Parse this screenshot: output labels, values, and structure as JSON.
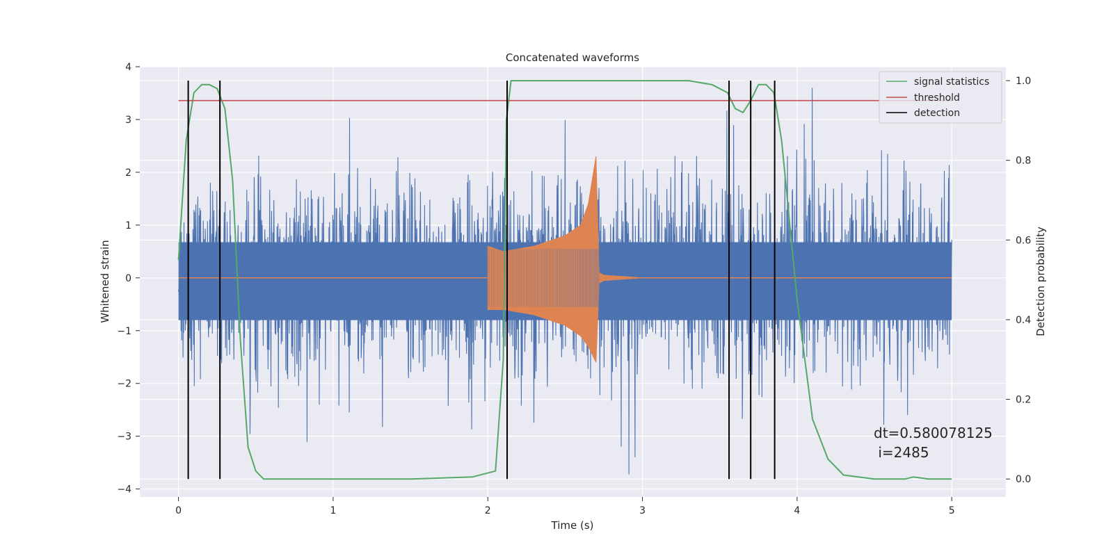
{
  "chart_data": {
    "type": "line",
    "title": "Concatenated waveforms",
    "xlabel": "Time (s)",
    "ylabel": "Whitened strain",
    "y2label": "Detection probability",
    "xlim": [
      -0.25,
      5.35
    ],
    "ylim": [
      -4.15,
      4.0
    ],
    "y2lim": [
      -0.045,
      1.035
    ],
    "xticks": [
      "0",
      "1",
      "2",
      "3",
      "4",
      "5"
    ],
    "xtick_values": [
      0,
      1,
      2,
      3,
      4,
      5
    ],
    "yticks": [
      "4",
      "3",
      "2",
      "1",
      "0",
      "−1",
      "−2",
      "−3",
      "−4"
    ],
    "ytick_values": [
      4,
      3,
      2,
      1,
      0,
      -1,
      -2,
      -3,
      -4
    ],
    "y2ticks": [
      "1.0",
      "0.8",
      "0.6",
      "0.4",
      "0.2",
      "0.0"
    ],
    "y2tick_values": [
      1.0,
      0.8,
      0.6,
      0.4,
      0.2,
      0.0
    ],
    "grid": true,
    "legend_position": "top-right",
    "annotation": [
      "dt=0.580078125",
      " i=2485"
    ],
    "colors": {
      "noise": "#4c72b0",
      "injection": "#dd8452",
      "signal_statistics": "#55a868",
      "threshold": "#c44e52",
      "detection": "#000000",
      "plot_bg": "#eaeaf2",
      "grid": "#ffffff"
    },
    "series": [
      {
        "name": "",
        "axis": "left",
        "kind": "whitened noise",
        "x_range": [
          0,
          5
        ],
        "typical_envelope": [
          -2.0,
          2.5
        ],
        "extremes": [
          -3.8,
          3.6
        ]
      },
      {
        "name": "",
        "axis": "left",
        "kind": "injected chirp",
        "x": [
          0,
          2.0,
          2.0,
          2.1,
          2.2,
          2.3,
          2.4,
          2.5,
          2.6,
          2.65,
          2.7,
          2.72,
          2.75,
          3.0,
          5.0
        ],
        "upper": [
          0,
          0,
          0.6,
          0.5,
          0.55,
          0.6,
          0.7,
          0.8,
          1.0,
          1.4,
          2.3,
          0.1,
          0.05,
          0,
          0
        ],
        "lower": [
          0,
          0,
          -0.6,
          -0.6,
          -0.65,
          -0.7,
          -0.8,
          -0.9,
          -1.1,
          -1.3,
          -1.6,
          -0.1,
          -0.05,
          0,
          0
        ]
      },
      {
        "name": "signal statistics",
        "axis": "right",
        "x": [
          0,
          0.05,
          0.1,
          0.15,
          0.2,
          0.25,
          0.3,
          0.35,
          0.4,
          0.45,
          0.5,
          0.55,
          0.6,
          1.0,
          1.5,
          1.9,
          2.05,
          2.1,
          2.12,
          2.15,
          2.2,
          3.3,
          3.45,
          3.55,
          3.6,
          3.65,
          3.7,
          3.75,
          3.8,
          3.85,
          3.9,
          4.0,
          4.1,
          4.2,
          4.3,
          4.5,
          4.7,
          4.75,
          4.85,
          5.0
        ],
        "y": [
          0.55,
          0.85,
          0.97,
          0.99,
          0.99,
          0.98,
          0.93,
          0.75,
          0.35,
          0.08,
          0.02,
          0.0,
          0.0,
          0.0,
          0.0,
          0.005,
          0.02,
          0.3,
          0.9,
          1.0,
          1.0,
          1.0,
          0.99,
          0.97,
          0.93,
          0.92,
          0.95,
          0.99,
          0.99,
          0.97,
          0.85,
          0.45,
          0.15,
          0.05,
          0.01,
          0.0,
          0.0,
          0.005,
          0.0,
          0.0
        ]
      },
      {
        "name": "threshold",
        "axis": "right",
        "x": [
          0,
          5
        ],
        "y": [
          0.95,
          0.95
        ]
      },
      {
        "name": "detection",
        "axis": "right",
        "vlines": [
          0.063,
          0.268,
          2.125,
          3.56,
          3.7,
          3.855
        ],
        "ymin": 0.0,
        "ymax": 1.0
      }
    ]
  }
}
